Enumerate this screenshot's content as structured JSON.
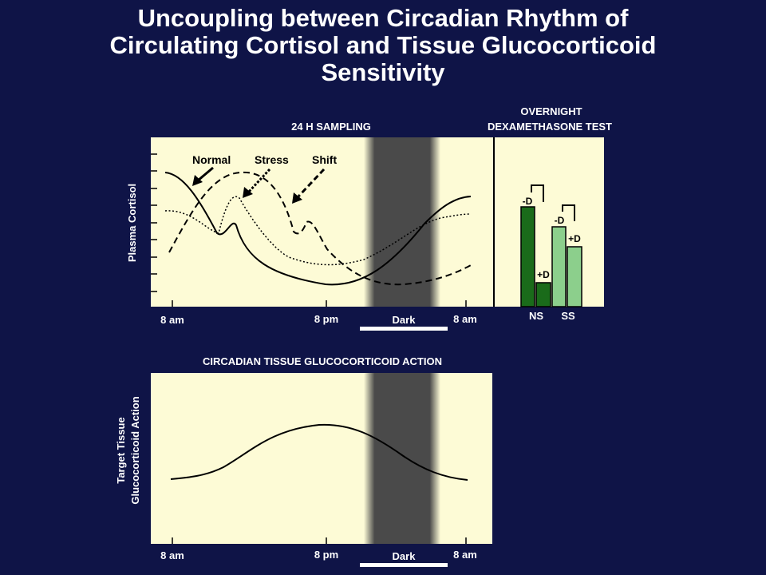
{
  "title_lines": [
    "Uncoupling between Circadian Rhythm of",
    "Circulating Cortisol and Tissue Glucocorticoid",
    "Sensitivity"
  ],
  "colors": {
    "background": "#0f1447",
    "panel": "#fdfbd6",
    "dark_band": "#4a4a4a",
    "bar_ns": "#1a6b1a",
    "bar_ss": "#8ccf8c"
  },
  "top_panel": {
    "header": "24 H SAMPLING",
    "y_label": "Plasma Cortisol",
    "x_ticks": [
      "8 am",
      "8 pm",
      "8 am"
    ],
    "dark_label": "Dark",
    "series_labels": {
      "normal": "Normal",
      "stress": "Stress",
      "shift": "Shift"
    }
  },
  "dex_panel": {
    "header_lines": [
      "OVERNIGHT",
      "DEXAMETHASONE TEST"
    ],
    "group_labels": [
      "NS",
      "SS"
    ],
    "bar_labels": {
      "minus_d": "-D",
      "plus_d": "+D"
    }
  },
  "bottom_panel": {
    "header": "CIRCADIAN TISSUE GLUCOCORTICOID ACTION",
    "y_label_lines": [
      "Target Tissue",
      "Glucocorticoid Action"
    ],
    "x_ticks": [
      "8 am",
      "8 pm",
      "8 am"
    ],
    "dark_label": "Dark"
  }
}
